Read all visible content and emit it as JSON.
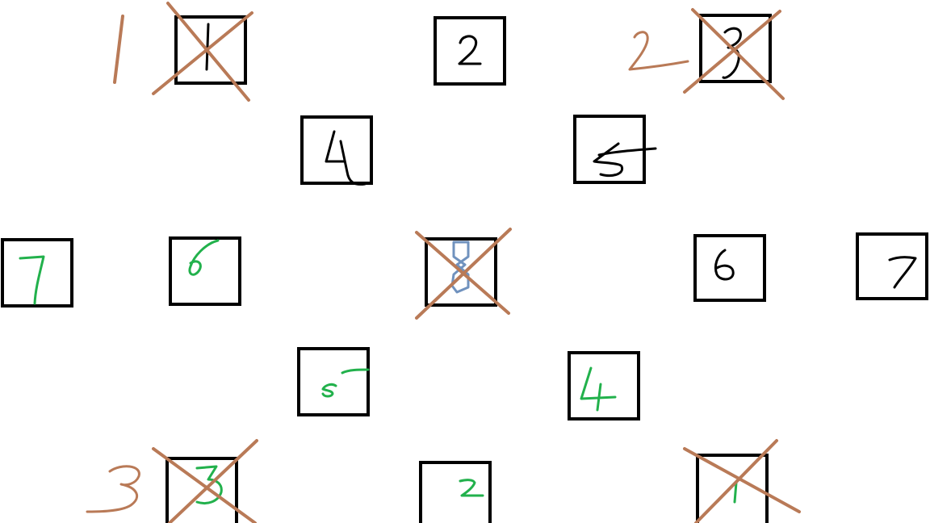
{
  "canvas": {
    "background": "#ffffff"
  },
  "colors": {
    "box_border": "#000000",
    "digit_black": "#000000",
    "digit_green": "#22b14c",
    "digit_blue": "#7092be",
    "cross_brown": "#b97a57",
    "tally_brown": "#b97a57"
  },
  "boxes": [
    {
      "digit": "1",
      "digit_color": "black",
      "crossed": true
    },
    {
      "digit": "2",
      "digit_color": "black",
      "crossed": false
    },
    {
      "digit": "3",
      "digit_color": "black",
      "crossed": true
    },
    {
      "digit": "4",
      "digit_color": "black",
      "crossed": false
    },
    {
      "digit": "5",
      "digit_color": "black",
      "crossed": false
    },
    {
      "digit": "7",
      "digit_color": "green",
      "crossed": false
    },
    {
      "digit": "6",
      "digit_color": "green",
      "crossed": false
    },
    {
      "digit": "8",
      "digit_color": "blue",
      "crossed": true
    },
    {
      "digit": "6",
      "digit_color": "black",
      "crossed": false
    },
    {
      "digit": "7",
      "digit_color": "black",
      "crossed": false
    },
    {
      "digit": "5",
      "digit_color": "green",
      "crossed": false
    },
    {
      "digit": "4",
      "digit_color": "green",
      "crossed": false
    },
    {
      "digit": "3",
      "digit_color": "green",
      "crossed": true
    },
    {
      "digit": "2",
      "digit_color": "green",
      "crossed": false
    },
    {
      "digit": "1",
      "digit_color": "green",
      "crossed": true
    }
  ],
  "tally_marks": [
    {
      "digit": "1",
      "color": "brown"
    },
    {
      "digit": "2",
      "color": "brown"
    },
    {
      "digit": "3",
      "color": "brown"
    }
  ]
}
